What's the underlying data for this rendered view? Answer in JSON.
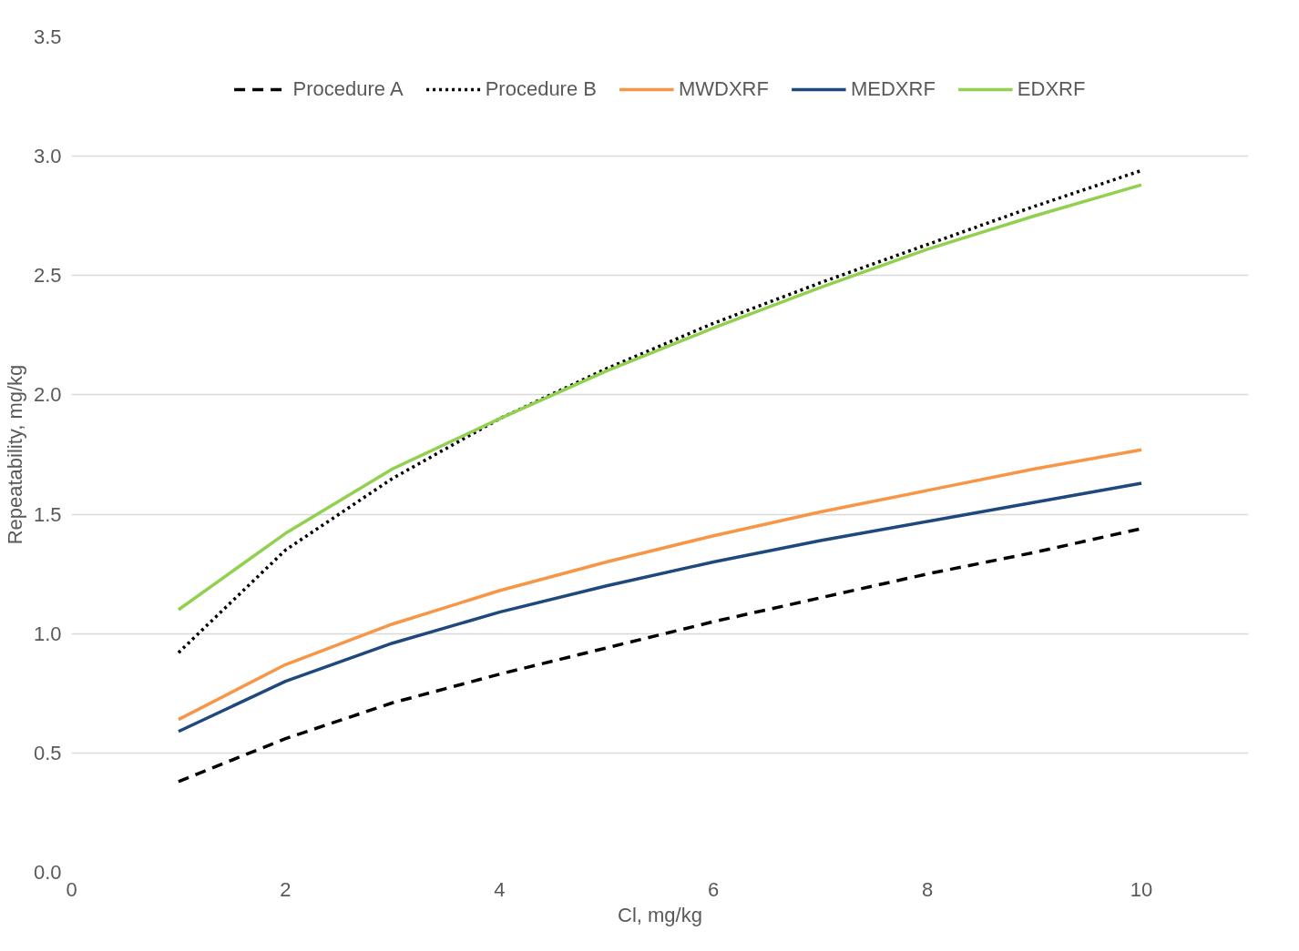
{
  "chart_data": {
    "type": "line",
    "xlabel": "Cl, mg/kg",
    "ylabel": "Repeatability, mg/kg",
    "x": [
      1,
      2,
      3,
      4,
      5,
      6,
      7,
      8,
      9,
      10
    ],
    "series": [
      {
        "name": "Procedure A",
        "color": "#000000",
        "line_style": "dashed",
        "values": [
          0.38,
          0.56,
          0.71,
          0.83,
          0.94,
          1.05,
          1.15,
          1.25,
          1.34,
          1.44
        ]
      },
      {
        "name": "Procedure B",
        "color": "#000000",
        "line_style": "dotted",
        "values": [
          0.92,
          1.35,
          1.65,
          1.9,
          2.11,
          2.3,
          2.47,
          2.63,
          2.79,
          2.94
        ]
      },
      {
        "name": "MWDXRF",
        "color": "#f79646",
        "line_style": "solid",
        "values": [
          0.64,
          0.87,
          1.04,
          1.18,
          1.3,
          1.41,
          1.51,
          1.6,
          1.69,
          1.77
        ]
      },
      {
        "name": "MEDXRF",
        "color": "#1f497d",
        "line_style": "solid",
        "values": [
          0.59,
          0.8,
          0.96,
          1.09,
          1.2,
          1.3,
          1.39,
          1.47,
          1.55,
          1.63
        ]
      },
      {
        "name": "EDXRF",
        "color": "#92d050",
        "line_style": "solid",
        "values": [
          1.1,
          1.42,
          1.69,
          1.9,
          2.1,
          2.28,
          2.45,
          2.61,
          2.75,
          2.88
        ]
      }
    ],
    "xlim": [
      0,
      11
    ],
    "ylim": [
      0,
      3.5
    ],
    "xticks": [
      0,
      2,
      4,
      6,
      8,
      10
    ],
    "yticks": [
      {
        "value": 0,
        "label": "0.0"
      },
      {
        "value": 0.5,
        "label": "0.5"
      },
      {
        "value": 1,
        "label": "1.0"
      },
      {
        "value": 1.5,
        "label": "1.5"
      },
      {
        "value": 2,
        "label": "2.0"
      },
      {
        "value": 2.5,
        "label": "2.5"
      },
      {
        "value": 3,
        "label": "3.0"
      },
      {
        "value": 3.5,
        "label": "3.5"
      }
    ],
    "grid": "y",
    "legend": "top"
  }
}
